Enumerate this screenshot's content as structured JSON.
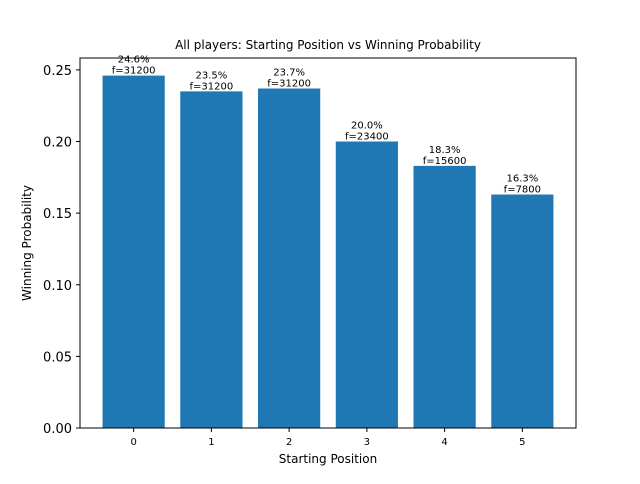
{
  "chart_data": {
    "type": "bar",
    "title": "All players: Starting Position vs Winning Probability",
    "xlabel": "Starting Position",
    "ylabel": "Winning Probability",
    "categories": [
      "0",
      "1",
      "2",
      "3",
      "4",
      "5"
    ],
    "values": [
      0.246,
      0.235,
      0.237,
      0.2,
      0.183,
      0.163
    ],
    "bar_labels": [
      [
        "24.6%",
        "f=31200"
      ],
      [
        "23.5%",
        "f=31200"
      ],
      [
        "23.7%",
        "f=31200"
      ],
      [
        "20.0%",
        "f=23400"
      ],
      [
        "18.3%",
        "f=15600"
      ],
      [
        "16.3%",
        "f=7800"
      ]
    ],
    "ylim": [
      0,
      0.2583
    ],
    "yticks": [
      0.0,
      0.05,
      0.1,
      0.15,
      0.2,
      0.25
    ],
    "ytick_labels": [
      "0.00",
      "0.05",
      "0.10",
      "0.15",
      "0.20",
      "0.25"
    ],
    "grid": false,
    "legend": null,
    "bar_color": "#1f77b4"
  }
}
